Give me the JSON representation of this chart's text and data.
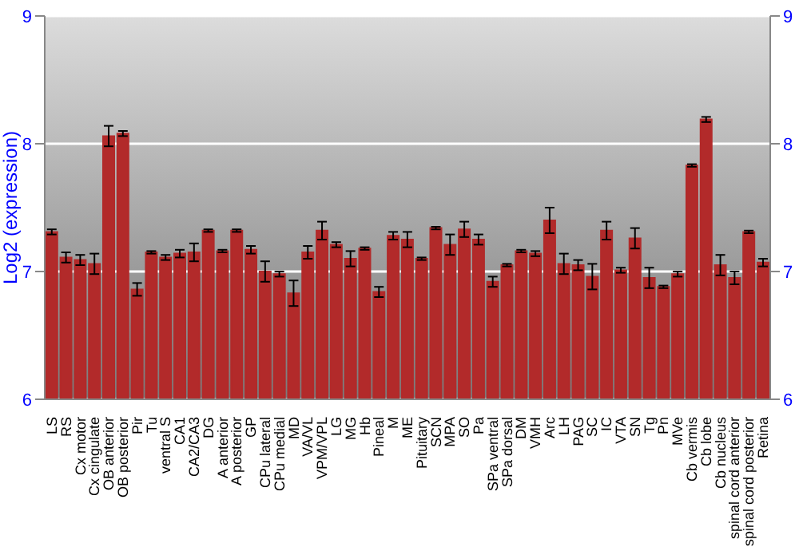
{
  "chart_data": {
    "type": "bar",
    "ylabel": "Log2 (expression)",
    "categories": [
      "LS",
      "RS",
      "Cx motor",
      "Cx cingulate",
      "OB anterior",
      "OB posterior",
      "Pir",
      "Tu",
      "ventral S",
      "CA1",
      "CA2/CA3",
      "DG",
      "A anterior",
      "A posterior",
      "GP",
      "CPu lateral",
      "CPu medial",
      "MD",
      "VA/VL",
      "VPM/VPL",
      "LG",
      "MG",
      "Hb",
      "Pineal",
      "M",
      "ME",
      "Pituitary",
      "SCN",
      "MPA",
      "SO",
      "Pa",
      "SPa ventral",
      "SPa dorsal",
      "DM",
      "VMH",
      "Arc",
      "LH",
      "PAG",
      "SC",
      "IC",
      "VTA",
      "SN",
      "Tg",
      "Pn",
      "MVe",
      "Cb vermis",
      "Cb lobe",
      "Cb nucleus",
      "spinal cord anterior",
      "spinal cord posterior",
      "Retina"
    ],
    "values": [
      7.31,
      7.11,
      7.09,
      7.06,
      8.06,
      8.08,
      6.86,
      7.15,
      7.11,
      7.14,
      7.15,
      7.32,
      7.16,
      7.32,
      7.17,
      7.0,
      6.98,
      6.83,
      7.15,
      7.32,
      7.21,
      7.1,
      7.18,
      6.84,
      7.28,
      7.25,
      7.1,
      7.34,
      7.21,
      7.33,
      7.25,
      6.92,
      7.05,
      7.16,
      7.14,
      7.4,
      7.06,
      7.05,
      6.96,
      7.32,
      7.01,
      7.26,
      6.95,
      6.88,
      6.98,
      7.83,
      8.19,
      7.05,
      6.95,
      7.31,
      7.07
    ],
    "errors": [
      0.02,
      0.04,
      0.04,
      0.08,
      0.08,
      0.02,
      0.05,
      0.01,
      0.02,
      0.03,
      0.07,
      0.01,
      0.01,
      0.01,
      0.03,
      0.08,
      0.02,
      0.1,
      0.05,
      0.07,
      0.02,
      0.06,
      0.01,
      0.04,
      0.03,
      0.06,
      0.01,
      0.01,
      0.08,
      0.06,
      0.04,
      0.04,
      0.01,
      0.01,
      0.02,
      0.1,
      0.08,
      0.04,
      0.1,
      0.07,
      0.02,
      0.08,
      0.08,
      0.01,
      0.02,
      0.01,
      0.02,
      0.08,
      0.05,
      0.01,
      0.03
    ],
    "color": "#b22a2a",
    "ylim": [
      6,
      9
    ],
    "yticks": [
      6,
      7,
      8,
      9
    ],
    "y2lim": [
      6,
      9
    ],
    "y2ticks": [
      6,
      7,
      8,
      9
    ],
    "grid": "y"
  }
}
